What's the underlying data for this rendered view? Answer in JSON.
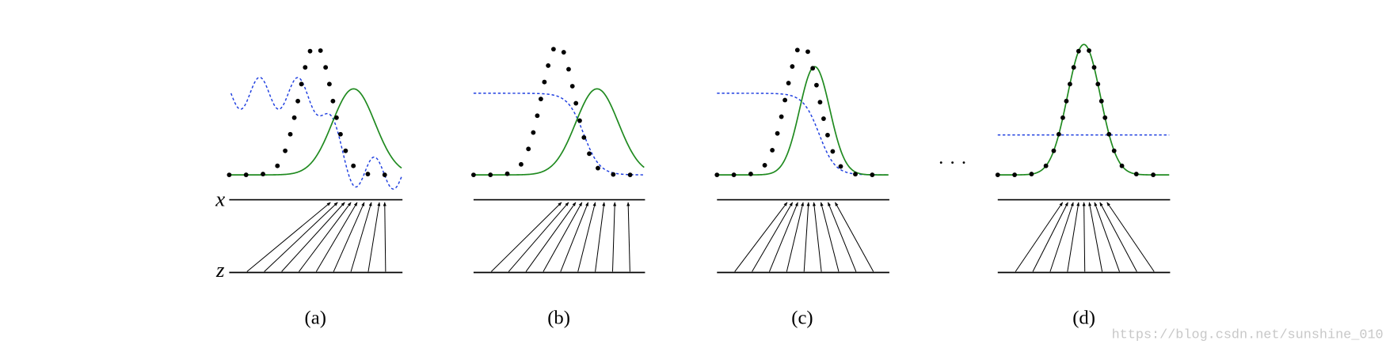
{
  "axis_labels": {
    "x": "x",
    "z": "z"
  },
  "panels": [
    {
      "caption": "(a)"
    },
    {
      "caption": "(b)"
    },
    {
      "caption": "(c)"
    },
    {
      "caption": "(d)"
    }
  ],
  "ellipsis": "· · ·",
  "watermark": "https://blog.csdn.net/sunshine_010"
}
